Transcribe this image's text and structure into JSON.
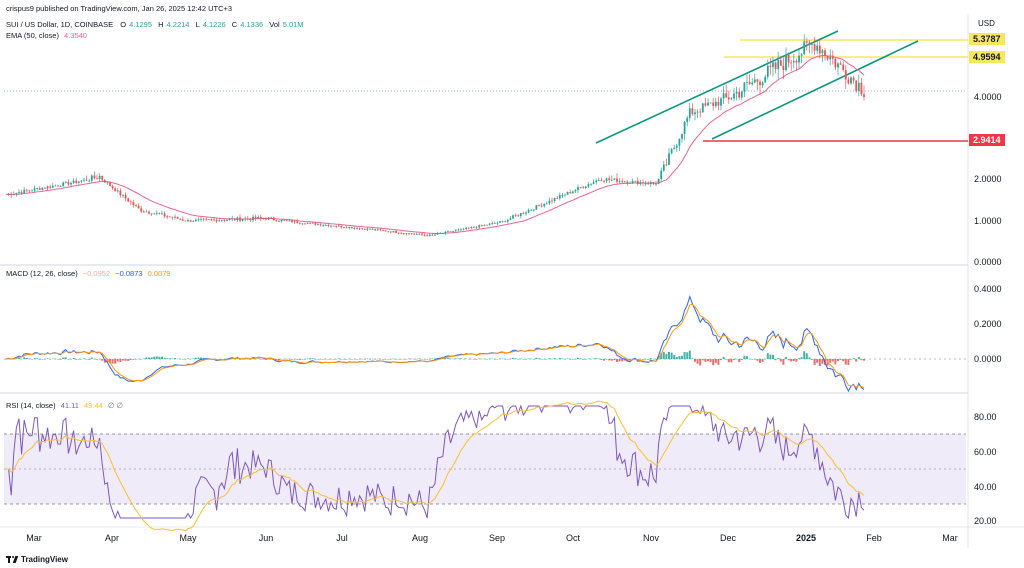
{
  "header": {
    "published": "crispus9 published on TradingView.com, Jan 26, 2025 12:42 UTC+3"
  },
  "symbol": {
    "title": "SUI / US Dollar, 1D, COINBASE",
    "open_label": "O",
    "open": "4.1295",
    "high_label": "H",
    "high": "4.2214",
    "low_label": "L",
    "low": "4.1226",
    "close_label": "C",
    "close": "4.1336",
    "vol_label": "Vol",
    "vol": "5.01M"
  },
  "ema_legend": {
    "label": "EMA (50, close)",
    "value": "4.3540"
  },
  "macd_legend": {
    "label": "MACD (12, 26, close)",
    "hist": "−0.0952",
    "macd": "−0.0873",
    "signal": "0.0079"
  },
  "rsi_legend": {
    "label": "RSI (14, close)",
    "rsi": "41.11",
    "ma": "49.44",
    "extra": "∅ ∅"
  },
  "currency": "USD",
  "footer": {
    "brand": "TradingView"
  },
  "colors": {
    "up": "#26a69a",
    "down": "#ef5350",
    "ema": "#f06292",
    "macd": "#2962ff",
    "signal": "#ff9800",
    "rsi": "#7e57c2",
    "rsi_ma": "#fbc02d",
    "channel": "#089981",
    "level_line": "#f5e85a",
    "support_line": "#f23645"
  },
  "chart_data": [
    {
      "type": "candlestick",
      "title": "SUI / US Dollar, 1D, COINBASE",
      "y_axis_ticks": [
        "0.0000",
        "1.0000",
        "2.0000",
        "4.0000"
      ],
      "y_scale": "log",
      "x_axis_ticks": [
        "Mar",
        "Apr",
        "May",
        "Jun",
        "Jul",
        "Aug",
        "Sep",
        "Oct",
        "Nov",
        "Dec",
        "2025",
        "Feb",
        "Mar"
      ],
      "price_levels": [
        {
          "label": "5.3787",
          "value": 5.3787,
          "color": "#f5e85a",
          "text_color": "#131722"
        },
        {
          "label": "4.9594",
          "value": 4.9594,
          "color": "#f5e85a",
          "text_color": "#131722"
        },
        {
          "label": "2.9414",
          "value": 2.9414,
          "color": "#f23645",
          "text_color": "#ffffff"
        }
      ],
      "key_points": [
        {
          "date": "Mar",
          "price": 1.55
        },
        {
          "date": "Apr-start",
          "price": 2.05
        },
        {
          "date": "Apr-mid",
          "price": 1.2
        },
        {
          "date": "May",
          "price": 1.0
        },
        {
          "date": "Jun",
          "price": 1.05
        },
        {
          "date": "Jul",
          "price": 0.85
        },
        {
          "date": "Aug-start",
          "price": 0.65
        },
        {
          "date": "Sep",
          "price": 0.95
        },
        {
          "date": "Oct",
          "price": 2.0
        },
        {
          "date": "Nov-start",
          "price": 1.85
        },
        {
          "date": "Nov-mid",
          "price": 3.5
        },
        {
          "date": "Dec-start",
          "price": 4.2
        },
        {
          "date": "2025-start",
          "price": 5.3
        },
        {
          "date": "Jan-end",
          "price": 4.13
        }
      ],
      "ema_last": 4.354
    },
    {
      "type": "line",
      "title": "MACD (12, 26, close)",
      "y_axis_ticks": [
        "0.0000",
        "0.2000",
        "0.4000"
      ],
      "series": [
        {
          "name": "MACD",
          "last": -0.0873
        },
        {
          "name": "Signal",
          "last": 0.0079
        },
        {
          "name": "Histogram",
          "last": -0.0952
        }
      ]
    },
    {
      "type": "line",
      "title": "RSI (14, close)",
      "y_axis_ticks": [
        "20.00",
        "40.00",
        "60.00",
        "80.00"
      ],
      "bands": [
        30,
        70
      ],
      "middle": 50,
      "series": [
        {
          "name": "RSI",
          "last": 41.11
        },
        {
          "name": "RSI-MA",
          "last": 49.44
        }
      ]
    }
  ]
}
